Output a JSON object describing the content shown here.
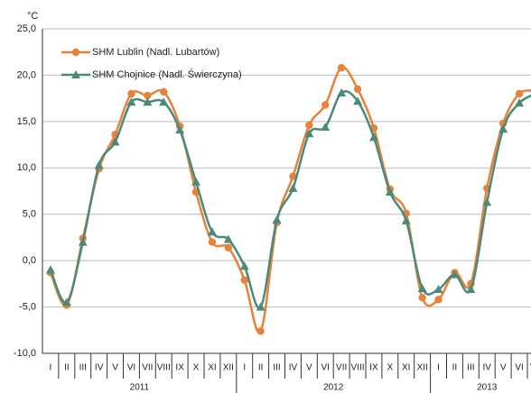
{
  "chart_data": {
    "type": "line",
    "y_unit": "°C",
    "categories": [
      "I",
      "II",
      "III",
      "IV",
      "V",
      "VI",
      "VII",
      "VIII",
      "IX",
      "X",
      "XI",
      "XII",
      "I",
      "II",
      "III",
      "IV",
      "V",
      "VI",
      "VII",
      "VIII",
      "IX",
      "X",
      "XI",
      "XII",
      "I",
      "II",
      "III",
      "IV",
      "V",
      "VI",
      "VII"
    ],
    "years": [
      "2011",
      "2012",
      "2013"
    ],
    "series": [
      {
        "name": "SHM Lublin (Nadl. Lubartów)",
        "color": "#e8823a",
        "marker": "circle",
        "values": [
          -1.3,
          -4.8,
          2.4,
          9.9,
          13.6,
          18.0,
          17.8,
          18.2,
          14.5,
          7.4,
          2.0,
          1.4,
          -2.1,
          -7.6,
          4.1,
          9.1,
          14.6,
          16.8,
          20.8,
          18.5,
          14.3,
          7.7,
          5.1,
          -4.0,
          -4.2,
          -1.3,
          -2.5,
          7.8,
          14.8,
          18.0,
          18.3
        ]
      },
      {
        "name": "SHM Chojnice (Nadl. Świerczyna)",
        "color": "#4a8a7a",
        "marker": "triangle",
        "values": [
          -1.0,
          -4.5,
          2.0,
          10.3,
          12.8,
          17.1,
          17.1,
          17.1,
          14.1,
          8.5,
          3.1,
          2.3,
          -0.6,
          -5.0,
          4.4,
          7.8,
          13.7,
          14.4,
          18.1,
          17.2,
          13.3,
          7.4,
          4.3,
          -3.0,
          -3.1,
          -1.5,
          -3.1,
          6.3,
          14.2,
          17.0,
          18.0
        ]
      }
    ],
    "ylim": [
      -10,
      25
    ],
    "yticks": [
      {
        "value": -10,
        "label": "-10,0"
      },
      {
        "value": -5,
        "label": "-5,0"
      },
      {
        "value": 0,
        "label": "0,0"
      },
      {
        "value": 5,
        "label": "5,0"
      },
      {
        "value": 10,
        "label": "10,0"
      },
      {
        "value": 15,
        "label": "15,0"
      },
      {
        "value": 20,
        "label": "20,0"
      },
      {
        "value": 25,
        "label": "25,0"
      }
    ],
    "grid": true,
    "legend": "top-left"
  }
}
